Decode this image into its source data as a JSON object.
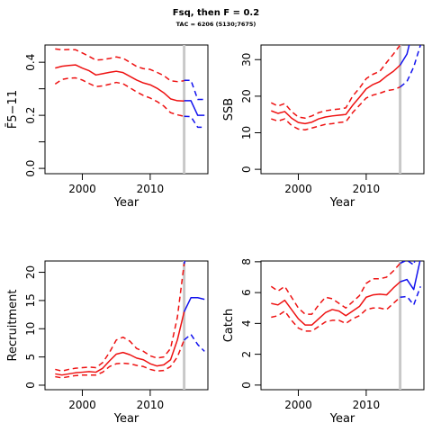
{
  "figure": {
    "title": "Fsq, then F = 0.2",
    "subtitle": "TAC = 6206 (5130;7675)"
  },
  "colors": {
    "historic": "#ee1111",
    "projection": "#1111ee",
    "divider": "#c8c8c8",
    "axis": "#000000"
  },
  "chart_data": [
    {
      "type": "line",
      "ylabel": "F̄5−11",
      "xlabel": "Year",
      "xlim": [
        1994.5,
        2018.5
      ],
      "ylim": [
        -0.02,
        0.465
      ],
      "xticks": [
        2000,
        2010
      ],
      "yticks": [
        0.0,
        0.1,
        0.2,
        0.3,
        0.4
      ],
      "ytick_labels": [
        "0.0",
        "",
        "0.2",
        "",
        "0.4"
      ],
      "divider_year": 2015,
      "historic": {
        "x": [
          1996,
          1997,
          1998,
          1999,
          2000,
          2001,
          2002,
          2003,
          2004,
          2005,
          2006,
          2007,
          2008,
          2009,
          2010,
          2011,
          2012,
          2013,
          2014,
          2015
        ],
        "median": [
          0.378,
          0.385,
          0.388,
          0.39,
          0.378,
          0.368,
          0.352,
          0.357,
          0.362,
          0.366,
          0.361,
          0.347,
          0.333,
          0.322,
          0.315,
          0.302,
          0.285,
          0.262,
          0.255,
          0.254
        ],
        "lower": [
          0.318,
          0.335,
          0.34,
          0.341,
          0.333,
          0.32,
          0.308,
          0.311,
          0.317,
          0.324,
          0.319,
          0.304,
          0.288,
          0.275,
          0.265,
          0.252,
          0.235,
          0.21,
          0.202,
          0.196
        ],
        "upper": [
          0.45,
          0.447,
          0.448,
          0.447,
          0.435,
          0.422,
          0.408,
          0.41,
          0.414,
          0.42,
          0.415,
          0.4,
          0.384,
          0.376,
          0.373,
          0.362,
          0.35,
          0.33,
          0.327,
          0.33
        ]
      },
      "projection": {
        "x": [
          2015,
          2016,
          2017,
          2018
        ],
        "median": [
          0.255,
          0.255,
          0.2,
          0.2
        ],
        "lower": [
          0.196,
          0.195,
          0.155,
          0.155
        ],
        "upper": [
          0.332,
          0.332,
          0.26,
          0.26
        ]
      }
    },
    {
      "type": "line",
      "ylabel": "SSB",
      "xlabel": "Year",
      "xlim": [
        1994.5,
        2018.5
      ],
      "ylim": [
        -1.2,
        34
      ],
      "xticks": [
        2000,
        2010
      ],
      "yticks": [
        0,
        10,
        20,
        30
      ],
      "ytick_labels": [
        "0",
        "10",
        "20",
        "30"
      ],
      "divider_year": 2015,
      "historic": {
        "x": [
          1996,
          1997,
          1998,
          1999,
          2000,
          2001,
          2002,
          2003,
          2004,
          2005,
          2006,
          2007,
          2008,
          2009,
          2010,
          2011,
          2012,
          2013,
          2014,
          2015
        ],
        "median": [
          16.0,
          15.3,
          15.8,
          14.0,
          12.8,
          12.5,
          12.9,
          13.8,
          14.3,
          14.6,
          14.8,
          15.0,
          17.5,
          19.7,
          22.0,
          23.2,
          24.0,
          25.5,
          26.8,
          28.5
        ],
        "lower": [
          13.8,
          13.2,
          13.8,
          12.0,
          11.0,
          10.8,
          11.3,
          11.8,
          12.3,
          12.5,
          12.8,
          13.0,
          15.5,
          17.5,
          19.5,
          20.3,
          20.8,
          21.5,
          21.8,
          22.5
        ],
        "upper": [
          18.2,
          17.3,
          18.0,
          15.8,
          14.3,
          14.0,
          14.6,
          15.5,
          16.0,
          16.3,
          16.5,
          16.8,
          20.0,
          22.2,
          24.8,
          26.0,
          26.8,
          29.2,
          31.5,
          34.0
        ]
      },
      "projection": {
        "x": [
          2015,
          2016,
          2017,
          2018
        ],
        "median": [
          28.5,
          31.5,
          39.0,
          46.0
        ],
        "lower": [
          22.5,
          24.0,
          28.0,
          34.0
        ],
        "upper": [
          34.0,
          39.0,
          48.0,
          58.0
        ]
      }
    },
    {
      "type": "line",
      "ylabel": "Recruitment",
      "xlabel": "Year",
      "xlim": [
        1994.5,
        2018.5
      ],
      "ylim": [
        -0.8,
        22
      ],
      "xticks": [
        2000,
        2010
      ],
      "yticks": [
        0,
        5,
        10,
        15,
        20
      ],
      "ytick_labels": [
        "0",
        "5",
        "10",
        "15",
        "20"
      ],
      "divider_year": 2015,
      "historic": {
        "x": [
          1996,
          1997,
          1998,
          1999,
          2000,
          2001,
          2002,
          2003,
          2004,
          2005,
          2006,
          2007,
          2008,
          2009,
          2010,
          2011,
          2012,
          2013,
          2014,
          2015
        ],
        "median": [
          2.0,
          1.8,
          2.0,
          2.2,
          2.3,
          2.4,
          2.3,
          3.0,
          4.3,
          5.5,
          5.8,
          5.4,
          4.8,
          4.5,
          3.8,
          3.4,
          3.6,
          4.5,
          8.0,
          13.0
        ],
        "lower": [
          1.5,
          1.3,
          1.5,
          1.7,
          1.8,
          1.8,
          1.8,
          2.3,
          3.3,
          3.8,
          3.9,
          3.8,
          3.5,
          3.3,
          2.8,
          2.5,
          2.6,
          3.3,
          5.0,
          8.0
        ],
        "upper": [
          2.8,
          2.5,
          2.8,
          3.0,
          3.1,
          3.2,
          3.1,
          4.0,
          5.8,
          8.0,
          8.5,
          7.8,
          6.5,
          6.0,
          5.2,
          4.8,
          5.0,
          6.5,
          12.0,
          21.5
        ]
      },
      "projection": {
        "x": [
          2015,
          2016,
          2017,
          2018
        ],
        "median": [
          13.0,
          15.5,
          15.5,
          15.2
        ],
        "lower": [
          8.0,
          9.0,
          7.2,
          6.0
        ],
        "upper": [
          21.5,
          26.0,
          27.0,
          27.0
        ]
      }
    },
    {
      "type": "line",
      "ylabel": "Catch",
      "xlabel": "Year",
      "xlim": [
        1994.5,
        2018.5
      ],
      "ylim": [
        -0.3,
        8.05
      ],
      "xticks": [
        2000,
        2010
      ],
      "yticks": [
        0,
        2,
        4,
        6,
        8
      ],
      "ytick_labels": [
        "0",
        "2",
        "4",
        "6",
        "8"
      ],
      "divider_year": 2015,
      "historic": {
        "x": [
          1996,
          1997,
          1998,
          1999,
          2000,
          2001,
          2002,
          2003,
          2004,
          2005,
          2006,
          2007,
          2008,
          2009,
          2010,
          2011,
          2012,
          2013,
          2014,
          2015
        ],
        "median": [
          5.3,
          5.2,
          5.5,
          4.9,
          4.3,
          3.9,
          3.9,
          4.3,
          4.7,
          4.9,
          4.8,
          4.5,
          4.8,
          5.1,
          5.7,
          5.85,
          5.9,
          5.85,
          6.3,
          6.7
        ],
        "lower": [
          4.4,
          4.5,
          4.8,
          4.2,
          3.7,
          3.5,
          3.5,
          3.8,
          4.1,
          4.2,
          4.2,
          4.0,
          4.3,
          4.5,
          4.9,
          5.0,
          5.0,
          4.9,
          5.3,
          5.7
        ],
        "upper": [
          6.4,
          6.1,
          6.4,
          5.7,
          5.0,
          4.6,
          4.6,
          5.2,
          5.7,
          5.6,
          5.3,
          5.0,
          5.4,
          5.8,
          6.6,
          6.9,
          6.9,
          7.0,
          7.4,
          7.9
        ]
      },
      "projection": {
        "x": [
          2015,
          2016,
          2017,
          2018
        ],
        "median": [
          6.7,
          6.85,
          6.2,
          8.2
        ],
        "lower": [
          5.7,
          5.75,
          5.2,
          6.4
        ],
        "upper": [
          7.9,
          8.1,
          7.8,
          9.5
        ]
      }
    }
  ]
}
